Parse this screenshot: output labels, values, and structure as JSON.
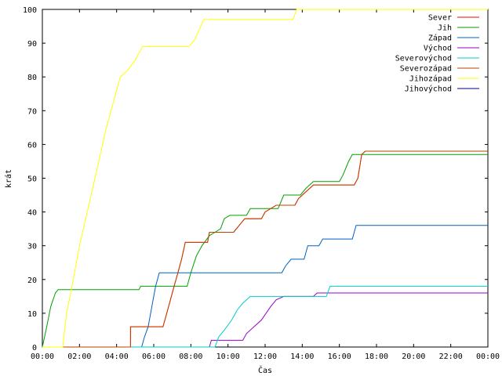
{
  "chart_data": {
    "type": "line",
    "xlabel": "Čas",
    "ylabel": "krát",
    "xlim": [
      0,
      24
    ],
    "ylim": [
      0,
      100
    ],
    "x_ticks": [
      {
        "v": 0,
        "label": "00:00"
      },
      {
        "v": 2,
        "label": "02:00"
      },
      {
        "v": 4,
        "label": "04:00"
      },
      {
        "v": 6,
        "label": "06:00"
      },
      {
        "v": 8,
        "label": "08:00"
      },
      {
        "v": 10,
        "label": "10:00"
      },
      {
        "v": 12,
        "label": "12:00"
      },
      {
        "v": 14,
        "label": "14:00"
      },
      {
        "v": 16,
        "label": "16:00"
      },
      {
        "v": 18,
        "label": "18:00"
      },
      {
        "v": 20,
        "label": "20:00"
      },
      {
        "v": 22,
        "label": "22:00"
      },
      {
        "v": 24,
        "label": "00:00"
      }
    ],
    "y_ticks": [
      0,
      10,
      20,
      30,
      40,
      50,
      60,
      70,
      80,
      90,
      100
    ],
    "grid": false,
    "legend_position": "top-right",
    "series": [
      {
        "name": "Sever",
        "color": "#ff0000",
        "points": [
          [
            0,
            0
          ],
          [
            4.75,
            0
          ],
          [
            4.75,
            6
          ],
          [
            6.5,
            6
          ],
          [
            6.7,
            10
          ],
          [
            6.9,
            14
          ],
          [
            7.1,
            18
          ],
          [
            7.3,
            22
          ],
          [
            7.5,
            26
          ],
          [
            7.7,
            31
          ],
          [
            8.9,
            31
          ],
          [
            9.0,
            34
          ],
          [
            10.3,
            34
          ],
          [
            10.6,
            36
          ],
          [
            10.9,
            38
          ],
          [
            11.8,
            38
          ],
          [
            12.0,
            40
          ],
          [
            12.6,
            42
          ],
          [
            13.6,
            42
          ],
          [
            13.8,
            44
          ],
          [
            14.2,
            46
          ],
          [
            14.6,
            48
          ],
          [
            16.8,
            48
          ],
          [
            17.0,
            50
          ],
          [
            17.2,
            57
          ],
          [
            17.4,
            58
          ],
          [
            24,
            58
          ]
        ]
      },
      {
        "name": "Jih",
        "color": "#00a000",
        "points": [
          [
            0,
            0
          ],
          [
            0.2,
            5
          ],
          [
            0.45,
            12
          ],
          [
            0.7,
            16
          ],
          [
            0.85,
            17
          ],
          [
            5.2,
            17
          ],
          [
            5.3,
            18
          ],
          [
            7.8,
            18
          ],
          [
            8.0,
            22
          ],
          [
            8.3,
            27
          ],
          [
            8.6,
            30
          ],
          [
            9.0,
            33
          ],
          [
            9.3,
            34
          ],
          [
            9.6,
            35
          ],
          [
            9.8,
            38
          ],
          [
            10.1,
            39
          ],
          [
            11.0,
            39
          ],
          [
            11.2,
            41
          ],
          [
            12.7,
            41
          ],
          [
            13.0,
            45
          ],
          [
            13.9,
            45
          ],
          [
            14.2,
            47
          ],
          [
            14.6,
            49
          ],
          [
            16.0,
            49
          ],
          [
            16.2,
            51
          ],
          [
            16.5,
            55
          ],
          [
            16.7,
            57
          ],
          [
            24,
            57
          ]
        ]
      },
      {
        "name": "Západ",
        "color": "#0060c0",
        "points": [
          [
            0,
            0
          ],
          [
            5.35,
            0
          ],
          [
            5.5,
            3
          ],
          [
            5.7,
            6
          ],
          [
            5.9,
            12
          ],
          [
            6.1,
            18
          ],
          [
            6.3,
            22
          ],
          [
            12.9,
            22
          ],
          [
            13.1,
            24
          ],
          [
            13.4,
            26
          ],
          [
            14.1,
            26
          ],
          [
            14.3,
            30
          ],
          [
            14.9,
            30
          ],
          [
            15.1,
            32
          ],
          [
            16.7,
            32
          ],
          [
            16.9,
            36
          ],
          [
            24,
            36
          ]
        ]
      },
      {
        "name": "Východ",
        "color": "#9900cc",
        "points": [
          [
            0,
            0
          ],
          [
            9.0,
            0
          ],
          [
            9.1,
            2
          ],
          [
            10.8,
            2
          ],
          [
            11.0,
            4
          ],
          [
            11.4,
            6
          ],
          [
            11.8,
            8
          ],
          [
            12.3,
            12
          ],
          [
            12.6,
            14
          ],
          [
            13.0,
            15
          ],
          [
            14.6,
            15
          ],
          [
            14.8,
            16
          ],
          [
            24,
            16
          ]
        ]
      },
      {
        "name": "Severovýchod",
        "color": "#00cccc",
        "points": [
          [
            0,
            0
          ],
          [
            9.3,
            0
          ],
          [
            9.5,
            3
          ],
          [
            9.8,
            5
          ],
          [
            10.2,
            8
          ],
          [
            10.5,
            11
          ],
          [
            10.8,
            13
          ],
          [
            11.2,
            15
          ],
          [
            15.3,
            15
          ],
          [
            15.5,
            18
          ],
          [
            24,
            18
          ]
        ]
      },
      {
        "name": "Severozápad",
        "color": "#c04000",
        "points": [
          [
            0,
            0
          ],
          [
            4.75,
            0
          ],
          [
            4.75,
            6
          ],
          [
            6.5,
            6
          ],
          [
            6.7,
            10
          ],
          [
            6.9,
            14
          ],
          [
            7.1,
            18
          ],
          [
            7.3,
            22
          ],
          [
            7.5,
            26
          ],
          [
            7.7,
            31
          ],
          [
            8.9,
            31
          ],
          [
            9.0,
            34
          ],
          [
            10.3,
            34
          ],
          [
            10.6,
            36
          ],
          [
            10.9,
            38
          ],
          [
            11.8,
            38
          ],
          [
            12.0,
            40
          ],
          [
            12.6,
            42
          ],
          [
            13.6,
            42
          ],
          [
            13.8,
            44
          ],
          [
            14.2,
            46
          ],
          [
            14.6,
            48
          ],
          [
            16.8,
            48
          ],
          [
            17.0,
            50
          ],
          [
            17.2,
            57
          ],
          [
            17.4,
            58
          ],
          [
            24,
            58
          ]
        ]
      },
      {
        "name": "Jihozápad",
        "color": "#ffff00",
        "points": [
          [
            0,
            0
          ],
          [
            1.1,
            0
          ],
          [
            1.3,
            10
          ],
          [
            1.6,
            18
          ],
          [
            2.0,
            30
          ],
          [
            2.5,
            42
          ],
          [
            3.0,
            54
          ],
          [
            3.4,
            64
          ],
          [
            3.8,
            72
          ],
          [
            4.2,
            80
          ],
          [
            4.6,
            82
          ],
          [
            5.0,
            85
          ],
          [
            5.4,
            89
          ],
          [
            7.9,
            89
          ],
          [
            8.2,
            91
          ],
          [
            8.7,
            97
          ],
          [
            13.5,
            97
          ],
          [
            13.7,
            100
          ],
          [
            24,
            100
          ]
        ]
      },
      {
        "name": "Jihovýchod",
        "color": "#000080",
        "points": []
      }
    ]
  }
}
